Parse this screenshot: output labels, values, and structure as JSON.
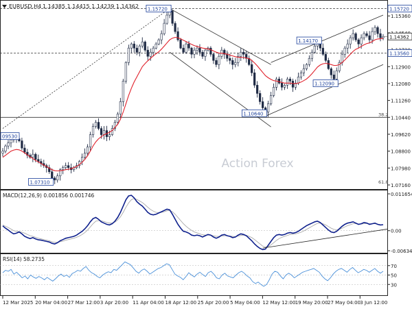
{
  "header": {
    "symbol": "EURUSD,H4",
    "ohlc": "1.14385 1.14415 1.14239 1.14362"
  },
  "watermark": "Action Forex",
  "colors": {
    "candle": "#1f2a44",
    "ma": "#e0202a",
    "channel": "#2b2b2b",
    "callout_border": "#1b3f9a",
    "callout_text": "#1b3f9a",
    "macd_line": "#0d1f8c",
    "macd_signal": "#a0a0a0",
    "rsi_line": "#4a90d9",
    "watermark": "#c8ccd4",
    "axis_text": "#1a1a1a",
    "grid": "#b0b0b0"
  },
  "chart_data": [
    {
      "type": "candlestick",
      "panel": "price",
      "y_ticks": [
        "1.15360",
        "1.14540",
        "1.13720",
        "1.12900",
        "1.12080",
        "1.11260",
        "1.10440",
        "1.09620",
        "1.08800",
        "1.07980",
        "1.07160"
      ],
      "ylim": [
        1.0716,
        1.158
      ],
      "current_price": "1.14362",
      "current_price_value": 1.14362,
      "level_lines": [
        {
          "value": 1.1572,
          "label": "1.15720"
        },
        {
          "value": 1.1356,
          "label": "1.13560"
        },
        {
          "value": 1.1044,
          "label": ""
        }
      ],
      "callouts": [
        {
          "label": "1.15720",
          "value": 1.1572,
          "x_index": 61
        },
        {
          "label": "1.14170",
          "value": 1.1417,
          "x_index": 116
        },
        {
          "label": "1.12090",
          "value": 1.1209,
          "x_index": 122
        },
        {
          "label": "1.10640",
          "value": 1.1064,
          "x_index": 96
        },
        {
          "label": "1.07310",
          "value": 1.0731,
          "x_index": 18
        },
        {
          "label": "09530",
          "value": 1.0953,
          "x_index": 0
        }
      ],
      "fib_labels": [
        {
          "label": "38.2",
          "value": 1.1044
        },
        {
          "label": "61.8",
          "value": 1.0716
        }
      ],
      "close_path": [
        1.088,
        1.0905,
        1.092,
        1.0935,
        1.095,
        1.094,
        1.093,
        1.0895,
        1.0875,
        1.086,
        1.085,
        1.0865,
        1.084,
        1.083,
        1.082,
        1.081,
        1.08,
        1.078,
        1.075,
        1.074,
        1.076,
        1.079,
        1.08,
        1.081,
        1.08,
        1.079,
        1.08,
        1.081,
        1.083,
        1.085,
        1.087,
        1.09,
        1.096,
        1.1,
        1.102,
        1.099,
        1.096,
        1.098,
        1.095,
        1.096,
        1.099,
        1.102,
        1.106,
        1.112,
        1.122,
        1.131,
        1.138,
        1.14,
        1.138,
        1.136,
        1.139,
        1.141,
        1.137,
        1.134,
        1.136,
        1.138,
        1.14,
        1.142,
        1.145,
        1.15,
        1.154,
        1.156,
        1.15,
        1.146,
        1.142,
        1.138,
        1.136,
        1.14,
        1.138,
        1.135,
        1.137,
        1.138,
        1.136,
        1.134,
        1.137,
        1.138,
        1.135,
        1.132,
        1.13,
        1.134,
        1.137,
        1.135,
        1.133,
        1.132,
        1.13,
        1.131,
        1.134,
        1.136,
        1.135,
        1.133,
        1.13,
        1.126,
        1.12,
        1.116,
        1.112,
        1.109,
        1.107,
        1.111,
        1.115,
        1.119,
        1.123,
        1.121,
        1.119,
        1.12,
        1.123,
        1.122,
        1.119,
        1.121,
        1.124,
        1.126,
        1.128,
        1.13,
        1.133,
        1.136,
        1.139,
        1.141,
        1.138,
        1.135,
        1.132,
        1.128,
        1.125,
        1.123,
        1.127,
        1.131,
        1.135,
        1.138,
        1.14,
        1.143,
        1.145,
        1.142,
        1.14,
        1.143,
        1.145,
        1.144,
        1.142,
        1.146,
        1.148,
        1.145,
        1.143,
        1.1436
      ],
      "ma_path": [
        1.085,
        1.086,
        1.087,
        1.088,
        1.0885,
        1.0888,
        1.0886,
        1.088,
        1.0872,
        1.0862,
        1.0852,
        1.0845,
        1.0835,
        1.0828,
        1.082,
        1.0812,
        1.0805,
        1.0797,
        1.079,
        1.0785,
        1.0784,
        1.0785,
        1.0787,
        1.079,
        1.0792,
        1.0795,
        1.08,
        1.0806,
        1.0815,
        1.0826,
        1.084,
        1.0858,
        1.088,
        1.0905,
        1.0925,
        1.094,
        1.095,
        1.096,
        1.0965,
        1.0972,
        1.098,
        1.0995,
        1.101,
        1.1035,
        1.107,
        1.111,
        1.115,
        1.1185,
        1.1215,
        1.124,
        1.1265,
        1.129,
        1.1305,
        1.1318,
        1.133,
        1.1342,
        1.1352,
        1.1362,
        1.1375,
        1.139,
        1.1405,
        1.142,
        1.1428,
        1.1432,
        1.143,
        1.1425,
        1.1418,
        1.1412,
        1.1405,
        1.1398,
        1.1392,
        1.1388,
        1.1384,
        1.138,
        1.1378,
        1.1376,
        1.1372,
        1.1366,
        1.136,
        1.1356,
        1.1355,
        1.1353,
        1.135,
        1.1346,
        1.1342,
        1.1338,
        1.1336,
        1.1335,
        1.1334,
        1.1332,
        1.1328,
        1.132,
        1.1308,
        1.1294,
        1.1278,
        1.1262,
        1.1246,
        1.1236,
        1.1228,
        1.1222,
        1.122,
        1.1217,
        1.1213,
        1.121,
        1.121,
        1.121,
        1.1208,
        1.1208,
        1.121,
        1.1215,
        1.1222,
        1.123,
        1.1242,
        1.1256,
        1.1272,
        1.1288,
        1.1298,
        1.1304,
        1.1306,
        1.1304,
        1.13,
        1.1296,
        1.1296,
        1.13,
        1.131,
        1.1322,
        1.1336,
        1.135,
        1.1364,
        1.1374,
        1.138,
        1.1388,
        1.1396,
        1.1402,
        1.1405,
        1.1412,
        1.142,
        1.1424,
        1.1425,
        1.1428
      ]
    },
    {
      "type": "line",
      "panel": "macd",
      "label": "MACD(12,26,9) 0.001856 0.001746",
      "y_ticks": [
        "0.011654",
        "0.00",
        "-0.006345"
      ],
      "ylim": [
        -0.006345,
        0.011654
      ],
      "trendline": [
        {
          "x_index": 95,
          "value": -0.0055
        },
        {
          "x_index": 139,
          "value": 0.0005
        }
      ],
      "series": [
        {
          "role": "macd",
          "values": [
            0.0015,
            0.0008,
            0.0002,
            -0.0005,
            -0.001,
            -0.0008,
            -0.0004,
            -0.001,
            -0.0018,
            -0.0022,
            -0.0025,
            -0.0022,
            -0.0026,
            -0.0029,
            -0.003,
            -0.0032,
            -0.0034,
            -0.0036,
            -0.004,
            -0.0042,
            -0.0038,
            -0.0032,
            -0.0028,
            -0.0024,
            -0.0022,
            -0.002,
            -0.0018,
            -0.0014,
            -0.0008,
            -0.0002,
            0.0006,
            0.0016,
            0.0028,
            0.0038,
            0.0042,
            0.0036,
            0.0028,
            0.0024,
            0.002,
            0.0018,
            0.0022,
            0.003,
            0.0042,
            0.0058,
            0.0078,
            0.0098,
            0.011,
            0.0112,
            0.0104,
            0.0092,
            0.0084,
            0.0078,
            0.0068,
            0.0058,
            0.0052,
            0.005,
            0.0052,
            0.0056,
            0.006,
            0.0064,
            0.0068,
            0.0066,
            0.0052,
            0.0036,
            0.002,
            0.0008,
            -0.0002,
            -0.0004,
            -0.0008,
            -0.0014,
            -0.0016,
            -0.0014,
            -0.0016,
            -0.002,
            -0.0016,
            -0.0012,
            -0.0014,
            -0.002,
            -0.0024,
            -0.002,
            -0.0014,
            -0.0012,
            -0.0016,
            -0.0018,
            -0.0022,
            -0.002,
            -0.0014,
            -0.001,
            -0.0012,
            -0.0016,
            -0.0024,
            -0.0032,
            -0.0042,
            -0.005,
            -0.0056,
            -0.006,
            -0.0058,
            -0.0046,
            -0.0034,
            -0.0022,
            -0.0014,
            -0.0012,
            -0.0014,
            -0.0012,
            -0.0008,
            -0.0006,
            -0.0008,
            -0.0006,
            -0.0002,
            0.0004,
            0.001,
            0.0016,
            0.002,
            0.0024,
            0.0028,
            0.003,
            0.0026,
            0.0018,
            0.001,
            0.0002,
            -0.0004,
            -0.0006,
            -0.0002,
            0.0006,
            0.0014,
            0.002,
            0.0024,
            0.0026,
            0.0028,
            0.0024,
            0.002,
            0.0022,
            0.0026,
            0.0024,
            0.002,
            0.0022,
            0.0024,
            0.002,
            0.0018,
            0.0019
          ]
        },
        {
          "role": "signal",
          "values": [
            0.0018,
            0.0014,
            0.001,
            0.0005,
            0.0,
            -0.0002,
            -0.0003,
            -0.0005,
            -0.0008,
            -0.0012,
            -0.0016,
            -0.0018,
            -0.0021,
            -0.0024,
            -0.0026,
            -0.0028,
            -0.003,
            -0.0032,
            -0.0035,
            -0.0037,
            -0.0037,
            -0.0035,
            -0.0033,
            -0.003,
            -0.0028,
            -0.0026,
            -0.0024,
            -0.0021,
            -0.0017,
            -0.0012,
            -0.0006,
            0.0002,
            0.0012,
            0.0022,
            0.003,
            0.0032,
            0.0031,
            0.0029,
            0.0026,
            0.0024,
            0.0024,
            0.0027,
            0.0034,
            0.0044,
            0.0058,
            0.0074,
            0.0088,
            0.0098,
            0.0102,
            0.0099,
            0.0094,
            0.0089,
            0.0082,
            0.0074,
            0.0067,
            0.0062,
            0.0058,
            0.0057,
            0.0058,
            0.006,
            0.0063,
            0.0064,
            0.006,
            0.0052,
            0.0042,
            0.0032,
            0.0022,
            0.0014,
            0.0007,
            0.0001,
            -0.0004,
            -0.0007,
            -0.001,
            -0.0013,
            -0.0014,
            -0.0014,
            -0.0014,
            -0.0016,
            -0.0018,
            -0.0018,
            -0.0017,
            -0.0016,
            -0.0016,
            -0.0017,
            -0.0018,
            -0.0019,
            -0.0017,
            -0.0015,
            -0.0014,
            -0.0015,
            -0.0018,
            -0.0022,
            -0.0028,
            -0.0035,
            -0.0042,
            -0.0049,
            -0.0052,
            -0.005,
            -0.0045,
            -0.0038,
            -0.0031,
            -0.0025,
            -0.0021,
            -0.0018,
            -0.0015,
            -0.0012,
            -0.0011,
            -0.001,
            -0.0008,
            -0.0005,
            -0.0001,
            0.0004,
            0.0009,
            0.0014,
            0.0019,
            0.0023,
            0.0024,
            0.0022,
            0.0018,
            0.0013,
            0.0008,
            0.0004,
            0.0003,
            0.0004,
            0.0008,
            0.0012,
            0.0016,
            0.0019,
            0.0022,
            0.0022,
            0.0021,
            0.0021,
            0.0022,
            0.0023,
            0.0022,
            0.0022,
            0.0022,
            0.0021,
            0.0019,
            0.0018
          ]
        }
      ]
    },
    {
      "type": "line",
      "panel": "rsi",
      "label": "RSI(14) 58.2735",
      "y_ticks": [
        "70",
        "50",
        "30"
      ],
      "ylim": [
        10,
        90
      ],
      "values": [
        55,
        60,
        58,
        62,
        52,
        56,
        50,
        44,
        48,
        42,
        50,
        46,
        43,
        47,
        44,
        40,
        45,
        41,
        37,
        42,
        48,
        52,
        47,
        50,
        45,
        53,
        56,
        60,
        58,
        64,
        68,
        60,
        55,
        52,
        47,
        44,
        50,
        54,
        57,
        55,
        62,
        60,
        66,
        72,
        78,
        75,
        72,
        65,
        58,
        54,
        60,
        63,
        58,
        52,
        56,
        60,
        64,
        66,
        70,
        74,
        72,
        62,
        52,
        48,
        45,
        40,
        47,
        55,
        50,
        46,
        52,
        56,
        51,
        47,
        55,
        58,
        52,
        44,
        42,
        50,
        54,
        48,
        46,
        44,
        50,
        55,
        58,
        54,
        48,
        44,
        36,
        32,
        35,
        30,
        26,
        30,
        40,
        52,
        58,
        56,
        48,
        42,
        50,
        54,
        50,
        44,
        48,
        52,
        56,
        58,
        60,
        62,
        64,
        60,
        56,
        48,
        42,
        38,
        44,
        52,
        58,
        62,
        64,
        60,
        56,
        62,
        66,
        60,
        55,
        58,
        62,
        60,
        56,
        60,
        64,
        58,
        54,
        58
      ]
    }
  ],
  "x_axis": {
    "labels": [
      "12 Mar 2025",
      "20 Mar 04:00",
      "27 Mar 12:00",
      "3 Apr 20:00",
      "11 Apr 04:00",
      "18 Apr 12:00",
      "25 Apr 20:00",
      "5 May 04:00",
      "12 May 12:00",
      "19 May 20:00",
      "27 May 04:00",
      "3 Jun 12:00"
    ]
  }
}
